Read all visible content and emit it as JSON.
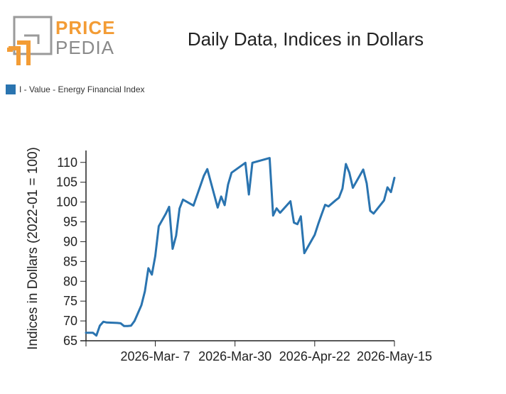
{
  "logo": {
    "word_top": "PRICE",
    "word_bottom": "PEDIA",
    "colors": {
      "accent": "#f39c35",
      "gray": "#8a8a8a"
    }
  },
  "chart_data": {
    "type": "line",
    "title": "Daily Data, Indices in Dollars",
    "ylabel": "Indices in Dollars (2022-01 = 100)",
    "xlabel": "",
    "ylim": [
      65,
      113
    ],
    "yticks": [
      65,
      70,
      75,
      80,
      85,
      90,
      95,
      100,
      105,
      110
    ],
    "xlim": [
      "2026-02-15",
      "2026-05-15"
    ],
    "xticks": [
      "2026-Mar- 7",
      "2026-Mar-30",
      "2026-Apr-22",
      "2026-May-15"
    ],
    "xtick_dates": [
      "2026-03-07",
      "2026-03-30",
      "2026-04-22",
      "2026-05-15"
    ],
    "grid": false,
    "legend_position": "top-left",
    "series": [
      {
        "name": "I - Value - Energy Financial Index",
        "color": "#2a74b0",
        "points": [
          [
            "2026-02-15",
            67.0
          ],
          [
            "2026-02-16",
            67.0
          ],
          [
            "2026-02-17",
            67.0
          ],
          [
            "2026-02-18",
            66.3
          ],
          [
            "2026-02-19",
            68.8
          ],
          [
            "2026-02-20",
            69.8
          ],
          [
            "2026-02-21",
            69.6
          ],
          [
            "2026-02-24",
            69.5
          ],
          [
            "2026-02-25",
            69.4
          ],
          [
            "2026-02-26",
            68.7
          ],
          [
            "2026-02-27",
            68.7
          ],
          [
            "2026-02-28",
            68.8
          ],
          [
            "2026-03-01",
            70.0
          ],
          [
            "2026-03-03",
            74.0
          ],
          [
            "2026-03-04",
            77.5
          ],
          [
            "2026-03-05",
            83.3
          ],
          [
            "2026-03-06",
            81.7
          ],
          [
            "2026-03-07",
            86.4
          ],
          [
            "2026-03-08",
            93.9
          ],
          [
            "2026-03-10",
            97.0
          ],
          [
            "2026-03-11",
            98.8
          ],
          [
            "2026-03-12",
            88.2
          ],
          [
            "2026-03-13",
            91.5
          ],
          [
            "2026-03-14",
            98.4
          ],
          [
            "2026-03-15",
            100.6
          ],
          [
            "2026-03-18",
            99.1
          ],
          [
            "2026-03-21",
            106.6
          ],
          [
            "2026-03-22",
            108.3
          ],
          [
            "2026-03-25",
            98.6
          ],
          [
            "2026-03-26",
            101.4
          ],
          [
            "2026-03-27",
            99.2
          ],
          [
            "2026-03-28",
            104.4
          ],
          [
            "2026-03-29",
            107.4
          ],
          [
            "2026-04-02",
            109.9
          ],
          [
            "2026-04-03",
            101.9
          ],
          [
            "2026-04-04",
            109.9
          ],
          [
            "2026-04-09",
            111.1
          ],
          [
            "2026-04-10",
            96.6
          ],
          [
            "2026-04-11",
            98.4
          ],
          [
            "2026-04-12",
            97.3
          ],
          [
            "2026-04-15",
            100.2
          ],
          [
            "2026-04-16",
            94.8
          ],
          [
            "2026-04-17",
            94.4
          ],
          [
            "2026-04-18",
            96.4
          ],
          [
            "2026-04-19",
            87.1
          ],
          [
            "2026-04-22",
            91.7
          ],
          [
            "2026-04-23",
            94.4
          ],
          [
            "2026-04-24",
            96.9
          ],
          [
            "2026-04-25",
            99.3
          ],
          [
            "2026-04-26",
            98.9
          ],
          [
            "2026-04-28",
            100.4
          ],
          [
            "2026-04-29",
            101.1
          ],
          [
            "2026-04-30",
            103.4
          ],
          [
            "2026-05-01",
            109.6
          ],
          [
            "2026-05-02",
            107.4
          ],
          [
            "2026-05-03",
            103.6
          ],
          [
            "2026-05-06",
            108.2
          ],
          [
            "2026-05-07",
            104.7
          ],
          [
            "2026-05-08",
            97.8
          ],
          [
            "2026-05-09",
            97.1
          ],
          [
            "2026-05-12",
            100.4
          ],
          [
            "2026-05-13",
            103.7
          ],
          [
            "2026-05-14",
            102.5
          ],
          [
            "2026-05-15",
            106.1
          ]
        ]
      }
    ]
  }
}
